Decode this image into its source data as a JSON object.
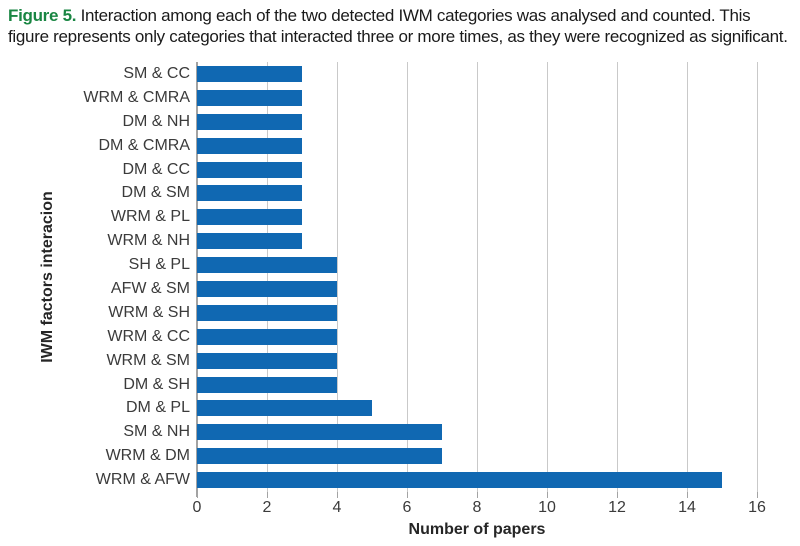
{
  "caption": {
    "label": "Figure 5.",
    "text": " Interaction among each of the two detected IWM categories was analysed and counted. This figure represents only categories that interacted three or more times, as they were recognized as significant.",
    "label_color": "#1a8643"
  },
  "chart_data": {
    "type": "bar",
    "orientation": "horizontal",
    "title": "",
    "xlabel": "Number of papers",
    "ylabel": "IWM factors interacion",
    "categories": [
      "SM & CC",
      "WRM & CMRA",
      "DM & NH",
      "DM & CMRA",
      "DM & CC",
      "DM & SM",
      "WRM & PL",
      "WRM & NH",
      "SH & PL",
      "AFW & SM",
      "WRM & SH",
      "WRM & CC",
      "WRM & SM",
      "DM & SH",
      "DM & PL",
      "SM & NH",
      "WRM & DM",
      "WRM & AFW"
    ],
    "values": [
      3,
      3,
      3,
      3,
      3,
      3,
      3,
      3,
      4,
      4,
      4,
      4,
      4,
      4,
      5,
      7,
      7,
      15
    ],
    "xlim": [
      0,
      16
    ],
    "xticks": [
      0,
      2,
      4,
      6,
      8,
      10,
      12,
      14,
      16
    ],
    "grid": "vertical",
    "legend": "none",
    "bar_color": "#1068b2",
    "gridline_color": "#c9c9c9",
    "axis_color": "#a3a3a3",
    "tick_label_color": "#3b3b3b"
  }
}
